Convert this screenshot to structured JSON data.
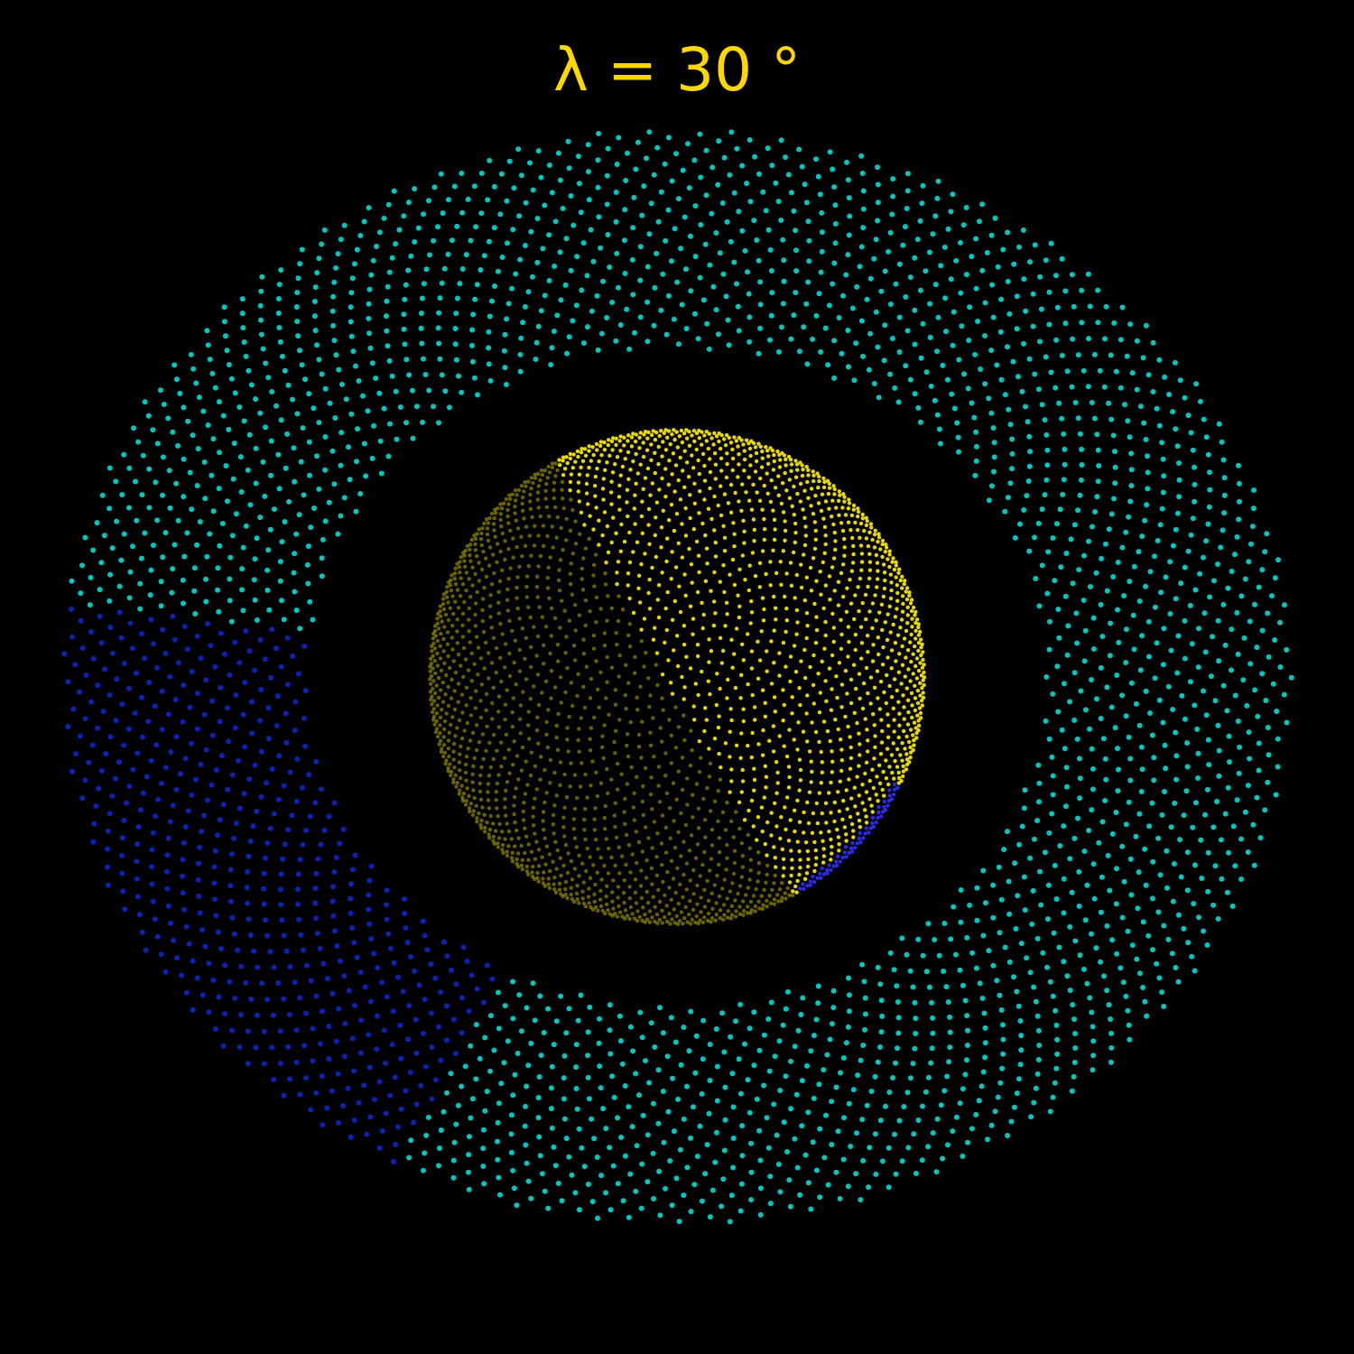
{
  "title": "λ = 30 °"
}
